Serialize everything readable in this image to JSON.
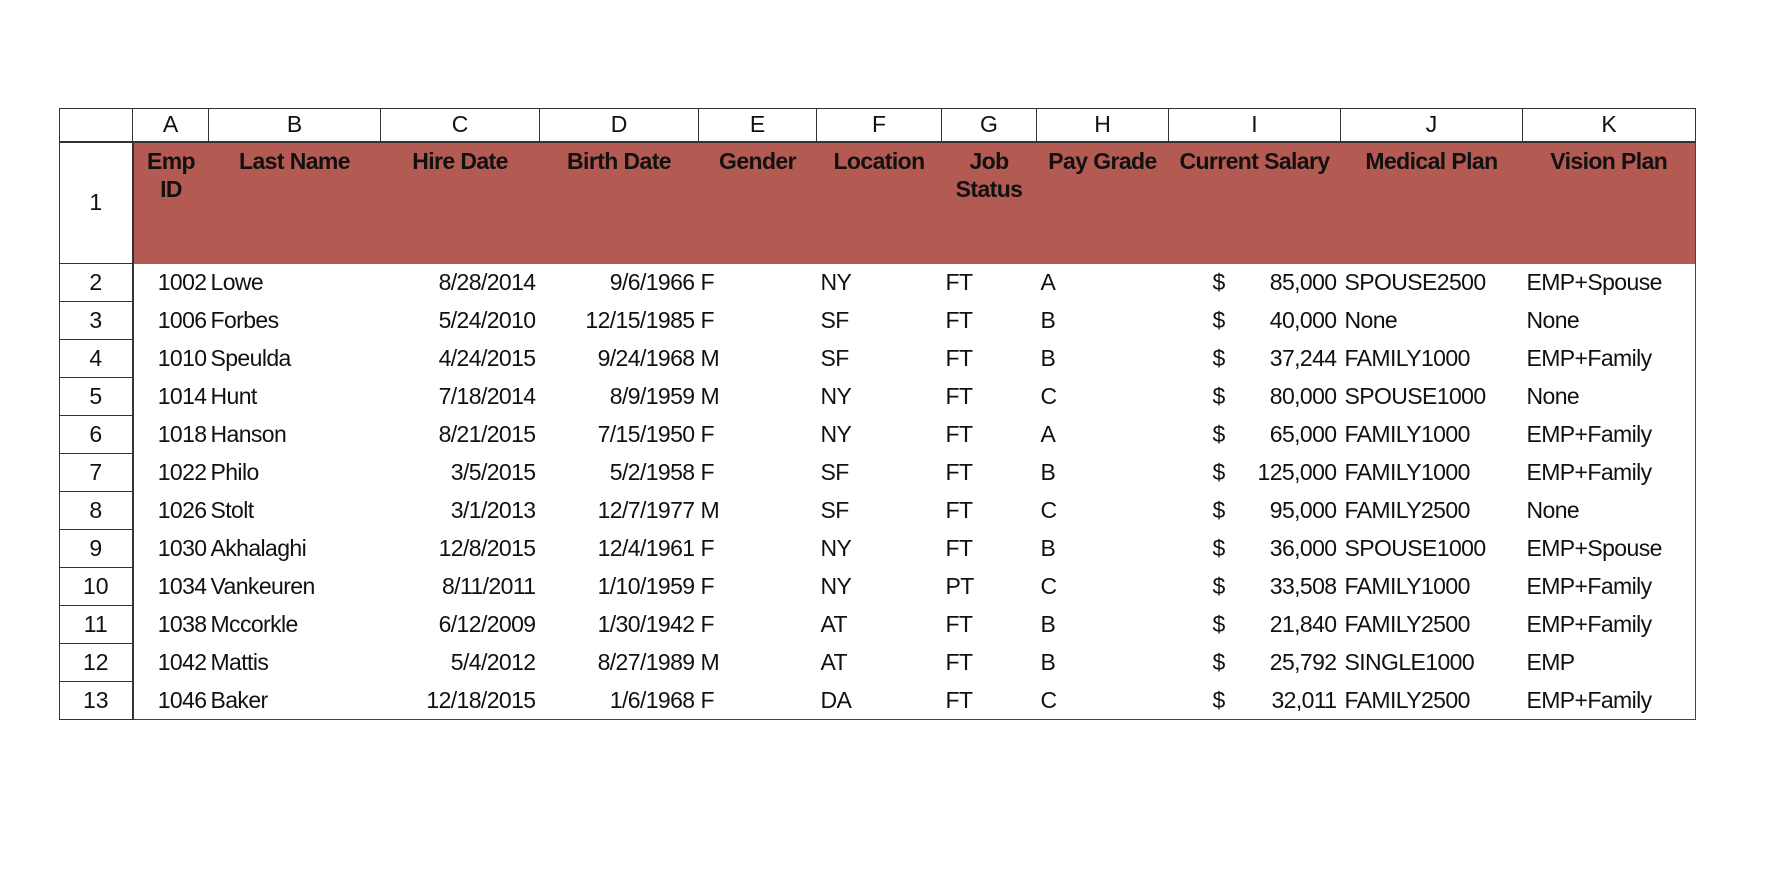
{
  "column_letters": [
    "A",
    "B",
    "C",
    "D",
    "E",
    "F",
    "G",
    "H",
    "I",
    "J",
    "K"
  ],
  "header_row_number": "1",
  "headers": [
    "Emp ID",
    "Last Name",
    "Hire Date",
    "Birth Date",
    "Gender",
    "Location",
    "Job Status",
    "Pay Grade",
    "Current Salary",
    "Medical Plan",
    "Vision Plan"
  ],
  "header_fill_color": "#B35A52",
  "currency_symbol": "$",
  "rows": [
    {
      "row": "2",
      "cells": [
        "1002",
        "Lowe",
        "8/28/2014",
        "9/6/1966",
        "F",
        "NY",
        "FT",
        "A",
        "85,000",
        "SPOUSE2500",
        "EMP+Spouse"
      ]
    },
    {
      "row": "3",
      "cells": [
        "1006",
        "Forbes",
        "5/24/2010",
        "12/15/1985",
        "F",
        "SF",
        "FT",
        "B",
        "40,000",
        "None",
        "None"
      ]
    },
    {
      "row": "4",
      "cells": [
        "1010",
        "Speulda",
        "4/24/2015",
        "9/24/1968",
        "M",
        "SF",
        "FT",
        "B",
        "37,244",
        "FAMILY1000",
        "EMP+Family"
      ]
    },
    {
      "row": "5",
      "cells": [
        "1014",
        "Hunt",
        "7/18/2014",
        "8/9/1959",
        "M",
        "NY",
        "FT",
        "C",
        "80,000",
        "SPOUSE1000",
        "None"
      ]
    },
    {
      "row": "6",
      "cells": [
        "1018",
        "Hanson",
        "8/21/2015",
        "7/15/1950",
        "F",
        "NY",
        "FT",
        "A",
        "65,000",
        "FAMILY1000",
        "EMP+Family"
      ]
    },
    {
      "row": "7",
      "cells": [
        "1022",
        "Philo",
        "3/5/2015",
        "5/2/1958",
        "F",
        "SF",
        "FT",
        "B",
        "125,000",
        "FAMILY1000",
        "EMP+Family"
      ]
    },
    {
      "row": "8",
      "cells": [
        "1026",
        "Stolt",
        "3/1/2013",
        "12/7/1977",
        "M",
        "SF",
        "FT",
        "C",
        "95,000",
        "FAMILY2500",
        "None"
      ]
    },
    {
      "row": "9",
      "cells": [
        "1030",
        "Akhalaghi",
        "12/8/2015",
        "12/4/1961",
        "F",
        "NY",
        "FT",
        "B",
        "36,000",
        "SPOUSE1000",
        "EMP+Spouse"
      ]
    },
    {
      "row": "10",
      "cells": [
        "1034",
        "Vankeuren",
        "8/11/2011",
        "1/10/1959",
        "F",
        "NY",
        "PT",
        "C",
        "33,508",
        "FAMILY1000",
        "EMP+Family"
      ]
    },
    {
      "row": "11",
      "cells": [
        "1038",
        "Mccorkle",
        "6/12/2009",
        "1/30/1942",
        "F",
        "AT",
        "FT",
        "B",
        "21,840",
        "FAMILY2500",
        "EMP+Family"
      ]
    },
    {
      "row": "12",
      "cells": [
        "1042",
        "Mattis",
        "5/4/2012",
        "8/27/1989",
        "M",
        "AT",
        "FT",
        "B",
        "25,792",
        "SINGLE1000",
        "EMP"
      ]
    },
    {
      "row": "13",
      "cells": [
        "1046",
        "Baker",
        "12/18/2015",
        "1/6/1968",
        "F",
        "DA",
        "FT",
        "C",
        "32,011",
        "FAMILY2500",
        "EMP+Family"
      ]
    }
  ]
}
